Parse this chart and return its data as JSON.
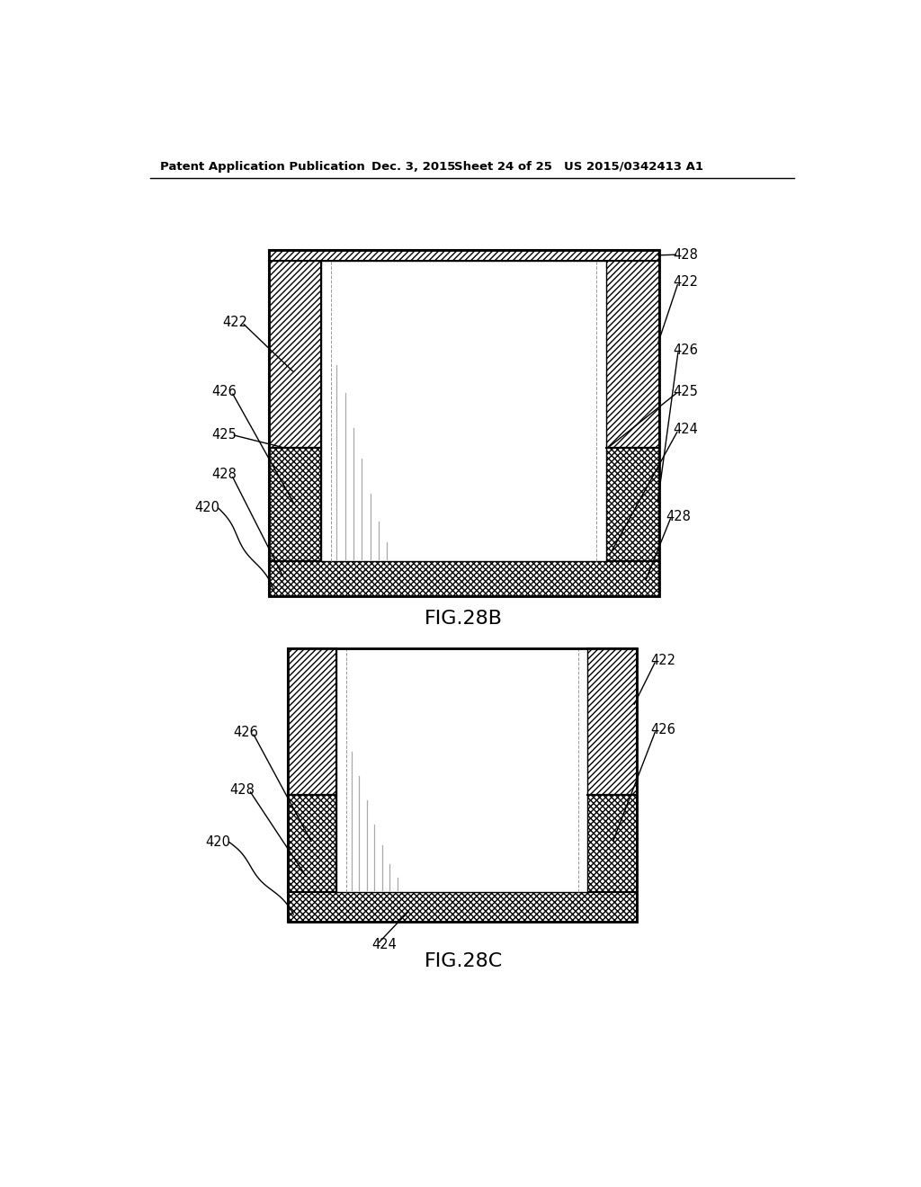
{
  "bg_color": "#ffffff",
  "header_text": "Patent Application Publication",
  "header_date": "Dec. 3, 2015",
  "header_sheet": "Sheet 24 of 25",
  "header_patent": "US 2015/0342413 A1",
  "fig28b_label": "FIG.28B",
  "fig28c_label": "FIG.28C"
}
